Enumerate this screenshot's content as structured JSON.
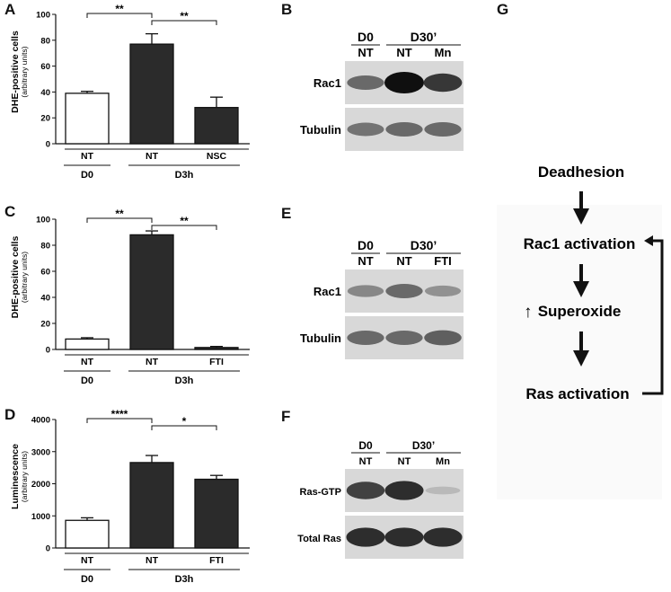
{
  "panels": {
    "A": {
      "letter": "A"
    },
    "B": {
      "letter": "B"
    },
    "C": {
      "letter": "C"
    },
    "D": {
      "letter": "D"
    },
    "E": {
      "letter": "E"
    },
    "F": {
      "letter": "F"
    },
    "G": {
      "letter": "G"
    }
  },
  "chart_data": [
    {
      "panel": "A",
      "type": "bar",
      "categories": [
        "NT",
        "NT",
        "NSC"
      ],
      "values": [
        39,
        77,
        28
      ],
      "errors": [
        1.5,
        8,
        8
      ],
      "fill": [
        "#ffffff",
        "#2b2b2b",
        "#2b2b2b"
      ],
      "ylabel": "DHE-positive cells",
      "ylabel_sub": "(arbitrary units)",
      "ylim": [
        0,
        100
      ],
      "yticks": [
        0,
        20,
        40,
        60,
        80,
        100
      ],
      "groups": [
        {
          "label": "D0",
          "from": 0,
          "to": 0
        },
        {
          "label": "D3h",
          "from": 1,
          "to": 2
        }
      ],
      "significance": [
        {
          "from": 0,
          "to": 1,
          "label": "**"
        },
        {
          "from": 1,
          "to": 2,
          "label": "**"
        }
      ]
    },
    {
      "panel": "C",
      "type": "bar",
      "categories": [
        "NT",
        "NT",
        "FTI"
      ],
      "values": [
        8,
        88,
        1.5
      ],
      "errors": [
        1,
        3,
        0.8
      ],
      "fill": [
        "#ffffff",
        "#2b2b2b",
        "#2b2b2b"
      ],
      "ylabel": "DHE-positive cells",
      "ylabel_sub": "(arbitrary units)",
      "ylim": [
        0,
        100
      ],
      "yticks": [
        0,
        20,
        40,
        60,
        80,
        100
      ],
      "groups": [
        {
          "label": "D0",
          "from": 0,
          "to": 0
        },
        {
          "label": "D3h",
          "from": 1,
          "to": 2
        }
      ],
      "significance": [
        {
          "from": 0,
          "to": 1,
          "label": "**"
        },
        {
          "from": 1,
          "to": 2,
          "label": "**"
        }
      ]
    },
    {
      "panel": "D",
      "type": "bar",
      "categories": [
        "NT",
        "NT",
        "FTI"
      ],
      "values": [
        860,
        2660,
        2140
      ],
      "errors": [
        80,
        220,
        120
      ],
      "fill": [
        "#ffffff",
        "#2b2b2b",
        "#2b2b2b"
      ],
      "ylabel": "Luminescence",
      "ylabel_sub": "(arbitrary units)",
      "ylim": [
        0,
        4000
      ],
      "yticks": [
        0,
        1000,
        2000,
        3000,
        4000
      ],
      "groups": [
        {
          "label": "D0",
          "from": 0,
          "to": 0
        },
        {
          "label": "D3h",
          "from": 1,
          "to": 2
        }
      ],
      "significance": [
        {
          "from": 0,
          "to": 1,
          "label": "****"
        },
        {
          "from": 1,
          "to": 2,
          "label": "*"
        }
      ]
    }
  ],
  "blots": {
    "B": {
      "header": [
        "D0",
        "D30’"
      ],
      "lanes": [
        "NT",
        "NT",
        "Mn"
      ],
      "rows": [
        "Rac1",
        "Tubulin"
      ],
      "intensity": {
        "Rac1": [
          0.55,
          1.0,
          0.8
        ],
        "Tubulin": [
          0.5,
          0.55,
          0.55
        ]
      }
    },
    "E": {
      "header": [
        "D0",
        "D30’"
      ],
      "lanes": [
        "NT",
        "NT",
        "FTI"
      ],
      "rows": [
        "Rac1",
        "Tubulin"
      ],
      "intensity": {
        "Rac1": [
          0.4,
          0.55,
          0.35
        ],
        "Tubulin": [
          0.55,
          0.55,
          0.6
        ]
      }
    },
    "F": {
      "header": [
        "D0",
        "D30’"
      ],
      "lanes": [
        "NT",
        "NT",
        "Mn"
      ],
      "rows": [
        "Ras-GTP",
        "Total Ras"
      ],
      "intensity": {
        "Ras-GTP": [
          0.75,
          0.85,
          0.15
        ],
        "Total Ras": [
          0.85,
          0.85,
          0.85
        ]
      }
    }
  },
  "diagram": {
    "steps": [
      "Deadhesion",
      "Rac1 activation",
      "Superoxide",
      "Ras activation"
    ],
    "up_arrow": "↑"
  }
}
